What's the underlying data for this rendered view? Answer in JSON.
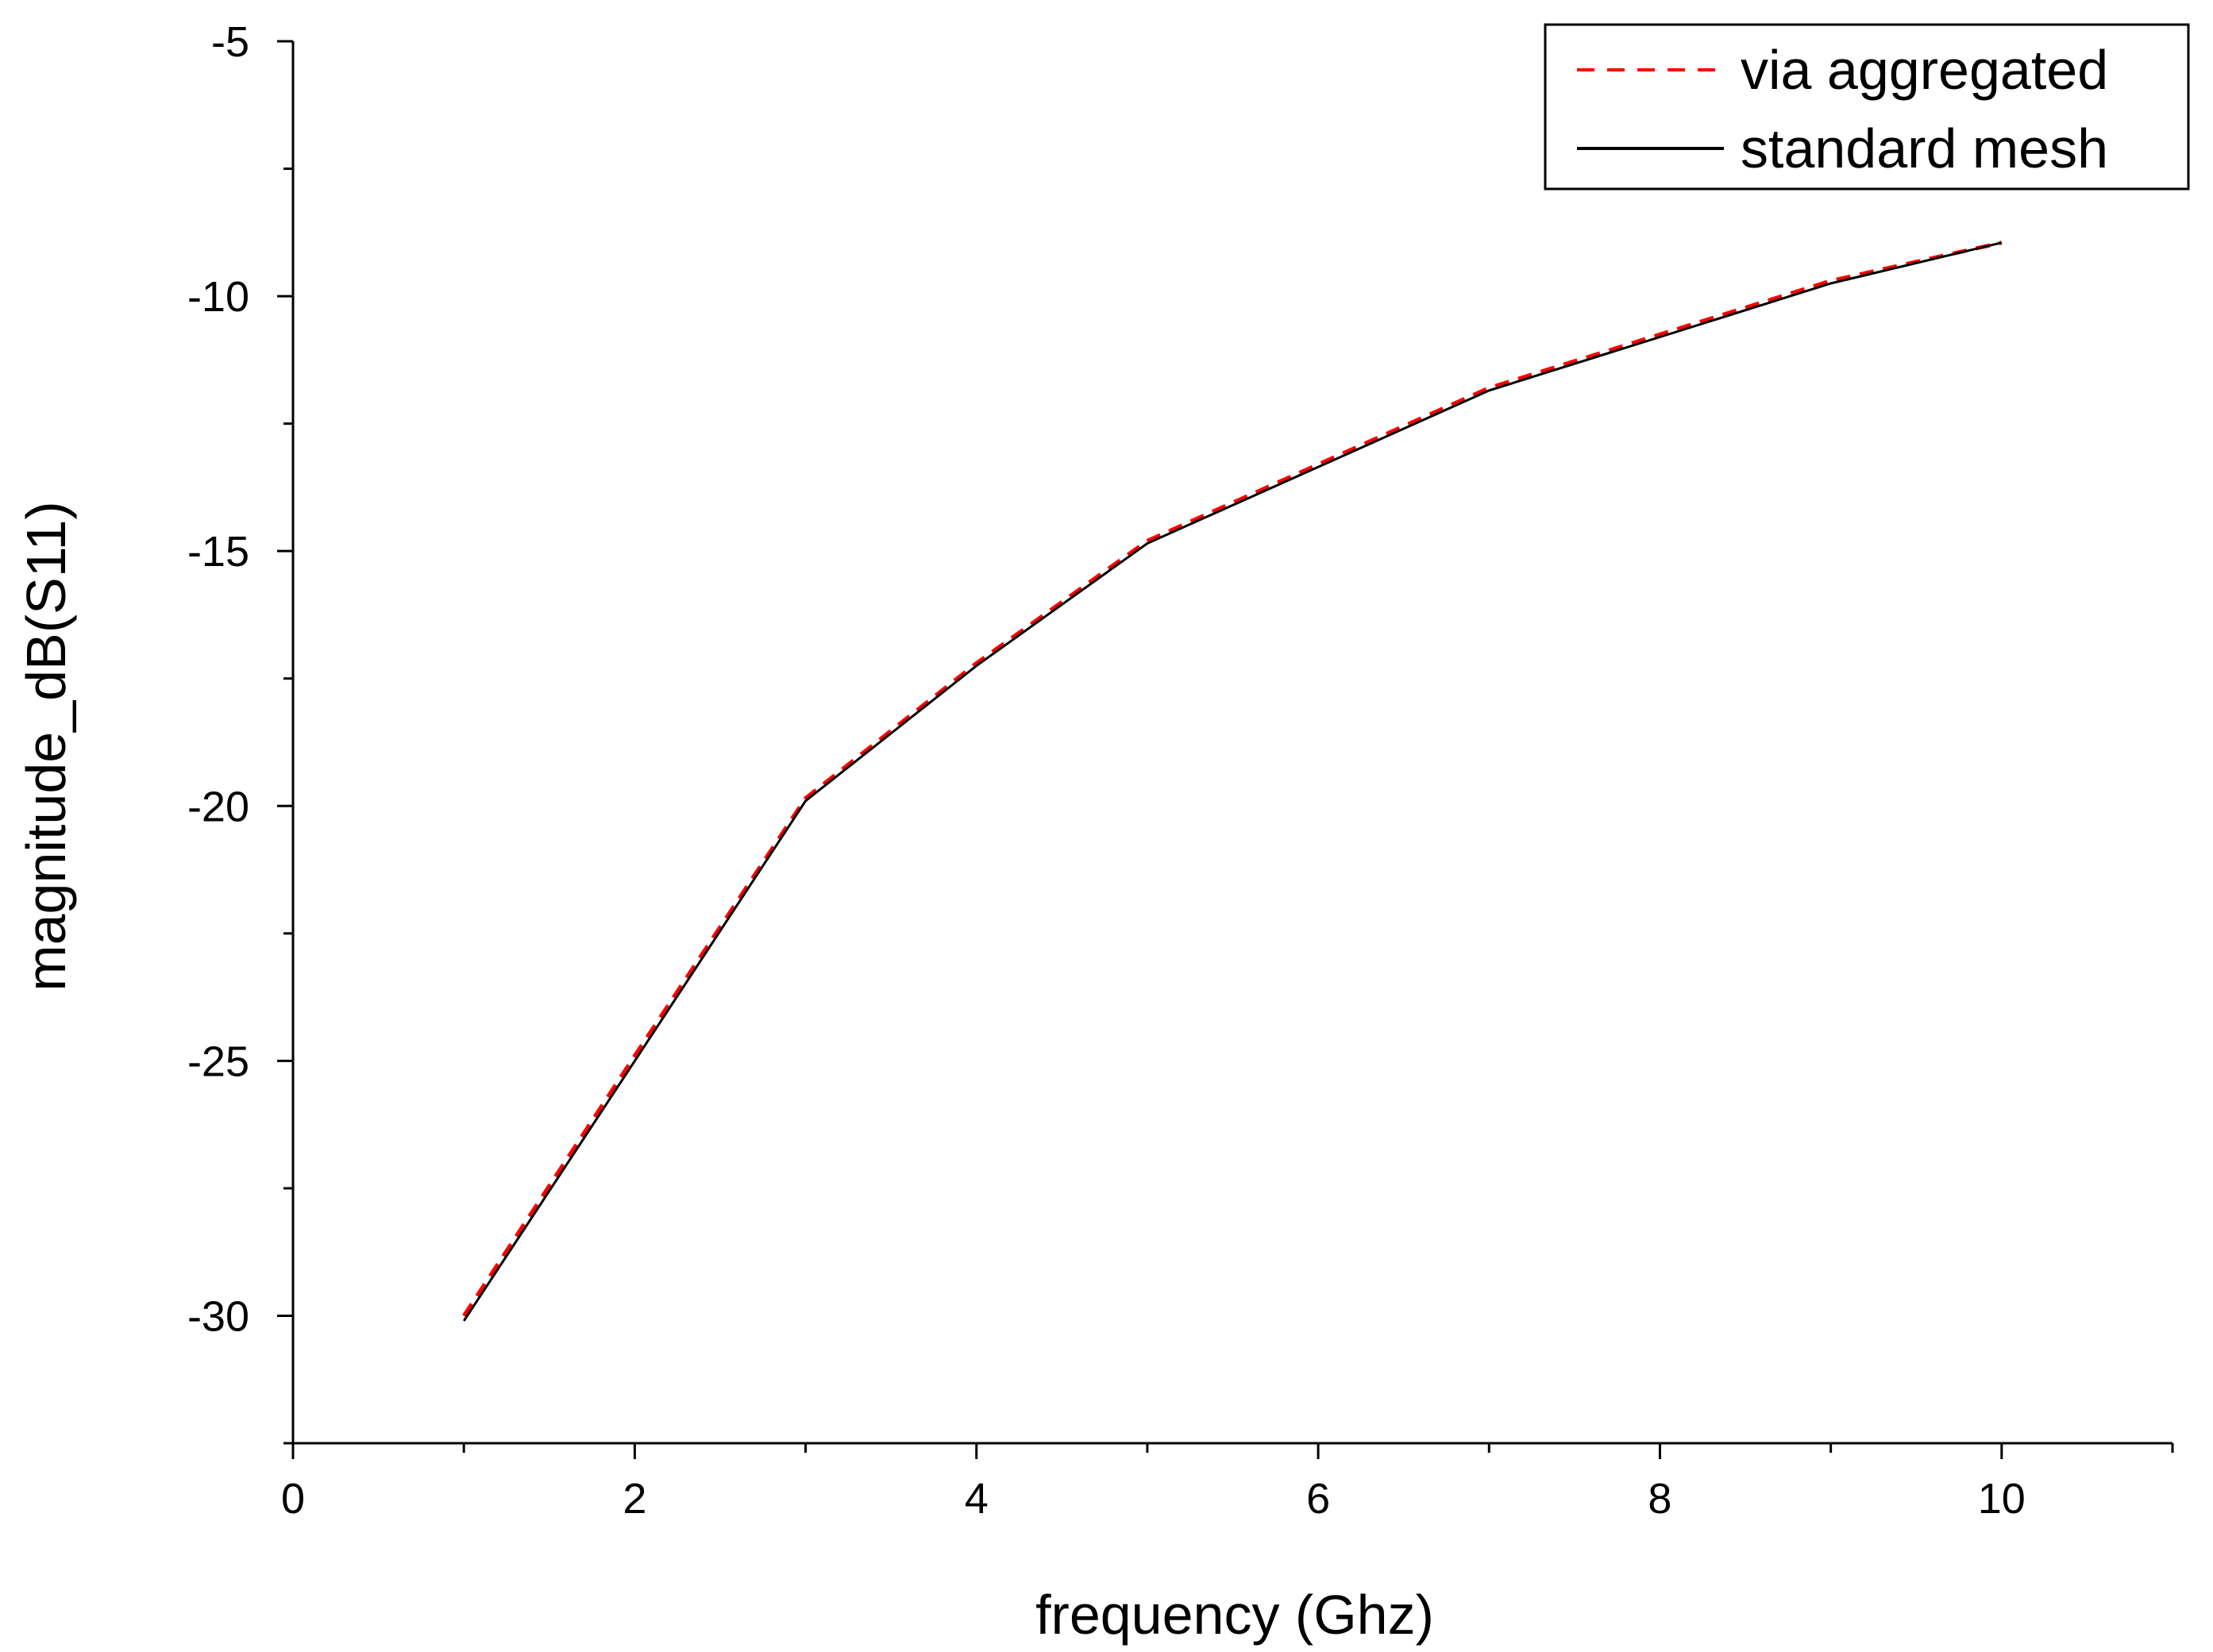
{
  "chart_data": {
    "type": "line",
    "xlabel": "frequency (Ghz)",
    "ylabel": "magnitude_dB(S11)",
    "xlim": [
      0,
      11
    ],
    "ylim": [
      -32.5,
      -5
    ],
    "x_ticks": [
      0,
      2,
      4,
      6,
      8,
      10
    ],
    "x_tick_labels": [
      "0",
      "2",
      "4",
      "6",
      "8",
      "10"
    ],
    "y_ticks": [
      -30,
      -25,
      -20,
      -15,
      -10,
      -5
    ],
    "y_tick_labels": [
      "-30",
      "-25",
      "-20",
      "-15",
      "-10",
      "-5"
    ],
    "grid": false,
    "legend_position": "top-right",
    "series": [
      {
        "name": "via aggregated",
        "color": "#ff0000",
        "dash": "dashed",
        "x": [
          1,
          2,
          3,
          4,
          5,
          6,
          7,
          8,
          9,
          10
        ],
        "y": [
          -30.0,
          -24.9,
          -19.85,
          -17.2,
          -14.8,
          -13.3,
          -11.8,
          -10.75,
          -9.7,
          -8.95
        ]
      },
      {
        "name": "standard mesh",
        "color": "#000000",
        "dash": "solid",
        "x": [
          1,
          2,
          3,
          4,
          5,
          6,
          7,
          8,
          9,
          10
        ],
        "y": [
          -30.1,
          -25.0,
          -19.9,
          -17.25,
          -14.85,
          -13.35,
          -11.85,
          -10.8,
          -9.75,
          -8.95
        ]
      }
    ]
  }
}
